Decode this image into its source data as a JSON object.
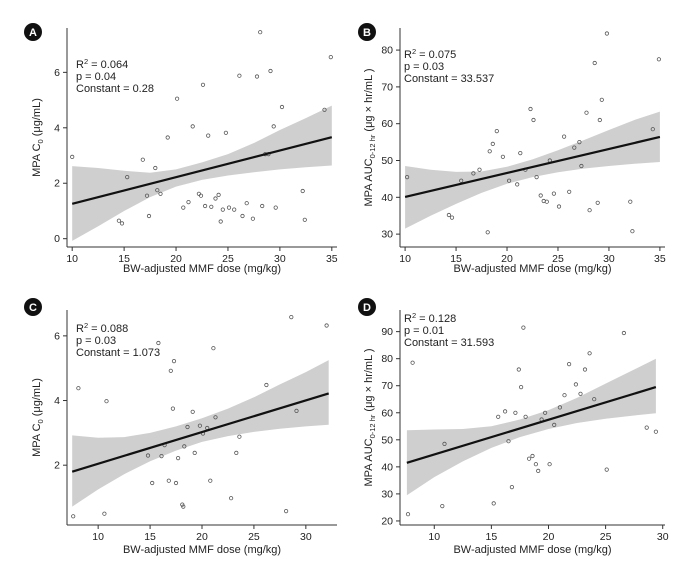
{
  "chart_data": [
    {
      "type": "scatter",
      "panel_label": "A",
      "xlabel": "BW-adjusted MMF dose (mg/kg)",
      "ylabel_main": "MPA C",
      "ylabel_sub": "0",
      "ylabel_rest": " (μg/mL)",
      "xlim": [
        9.5,
        35.5
      ],
      "ylim": [
        -0.3,
        7.6
      ],
      "xticks": [
        10,
        15,
        20,
        25,
        30,
        35
      ],
      "yticks": [
        0,
        2,
        4,
        6
      ],
      "stats": {
        "r2_label": "R",
        "r2_sup": "2",
        "r2_value": " = 0.064",
        "p": "p = 0.04",
        "constant": "Constant = 0.28"
      },
      "fit": {
        "x": [
          10,
          35
        ],
        "y": [
          1.26,
          3.66
        ]
      },
      "ci": {
        "x": [
          10,
          12.5,
          15,
          17.5,
          20,
          22.5,
          25,
          27.5,
          30,
          32.5,
          35
        ],
        "lower": [
          -0.08,
          0.45,
          1.0,
          1.5,
          1.88,
          2.12,
          2.28,
          2.4,
          2.5,
          2.58,
          2.64
        ],
        "upper": [
          2.62,
          2.55,
          2.45,
          2.38,
          2.5,
          2.75,
          3.05,
          3.45,
          3.92,
          4.35,
          4.8
        ]
      },
      "points": [
        {
          "x": 10,
          "y": 2.95
        },
        {
          "x": 14.5,
          "y": 0.65
        },
        {
          "x": 14.8,
          "y": 0.55
        },
        {
          "x": 15.3,
          "y": 2.22
        },
        {
          "x": 16.8,
          "y": 2.85
        },
        {
          "x": 17.2,
          "y": 1.55
        },
        {
          "x": 17.4,
          "y": 0.82
        },
        {
          "x": 18,
          "y": 2.55
        },
        {
          "x": 18.2,
          "y": 1.75
        },
        {
          "x": 18.5,
          "y": 1.62
        },
        {
          "x": 19.2,
          "y": 3.65
        },
        {
          "x": 20.1,
          "y": 5.05
        },
        {
          "x": 20.7,
          "y": 1.12
        },
        {
          "x": 21.2,
          "y": 1.32
        },
        {
          "x": 21.6,
          "y": 4.05
        },
        {
          "x": 22.2,
          "y": 1.62
        },
        {
          "x": 22.4,
          "y": 1.55
        },
        {
          "x": 22.6,
          "y": 5.55
        },
        {
          "x": 22.8,
          "y": 1.18
        },
        {
          "x": 23.1,
          "y": 3.72
        },
        {
          "x": 23.4,
          "y": 1.15
        },
        {
          "x": 23.8,
          "y": 1.45
        },
        {
          "x": 24.1,
          "y": 1.58
        },
        {
          "x": 24.3,
          "y": 0.62
        },
        {
          "x": 24.5,
          "y": 1.05
        },
        {
          "x": 24.8,
          "y": 3.82
        },
        {
          "x": 25.1,
          "y": 1.12
        },
        {
          "x": 25.6,
          "y": 1.05
        },
        {
          "x": 26.1,
          "y": 5.88
        },
        {
          "x": 26.4,
          "y": 0.82
        },
        {
          "x": 26.8,
          "y": 1.28
        },
        {
          "x": 27.4,
          "y": 0.72
        },
        {
          "x": 27.8,
          "y": 5.85
        },
        {
          "x": 28.1,
          "y": 7.45
        },
        {
          "x": 28.3,
          "y": 1.18
        },
        {
          "x": 28.6,
          "y": 3.05
        },
        {
          "x": 28.9,
          "y": 3.05
        },
        {
          "x": 29.1,
          "y": 6.05
        },
        {
          "x": 29.4,
          "y": 4.05
        },
        {
          "x": 29.6,
          "y": 1.12
        },
        {
          "x": 30.2,
          "y": 4.75
        },
        {
          "x": 32.2,
          "y": 1.72
        },
        {
          "x": 32.4,
          "y": 0.68
        },
        {
          "x": 34.3,
          "y": 4.65
        },
        {
          "x": 34.9,
          "y": 6.55
        }
      ]
    },
    {
      "type": "scatter",
      "panel_label": "B",
      "xlabel": "BW-adjusted MMF dose (mg/kg)",
      "ylabel_main": "MPA AUC",
      "ylabel_sub": "0-12 hr",
      "ylabel_rest": " (μg × hr/mL )",
      "xlim": [
        9.5,
        35.5
      ],
      "ylim": [
        26.5,
        86
      ],
      "xticks": [
        10,
        15,
        20,
        25,
        30,
        35
      ],
      "yticks": [
        30,
        40,
        50,
        60,
        70,
        80
      ],
      "stats": {
        "r2_label": "R",
        "r2_sup": "2",
        "r2_value": " = 0.075",
        "p": "p = 0.03",
        "constant": "Constant = 33.537"
      },
      "fit": {
        "x": [
          10,
          35
        ],
        "y": [
          40.1,
          56.4
        ]
      },
      "ci": {
        "x": [
          10,
          12.5,
          15,
          17.5,
          20,
          22.5,
          25,
          27.5,
          30,
          32.5,
          35
        ],
        "lower": [
          31.5,
          35.0,
          38.2,
          41.2,
          43.7,
          45.5,
          46.8,
          47.8,
          48.5,
          49.1,
          49.6
        ],
        "upper": [
          48.5,
          47.5,
          46.9,
          47.0,
          48.3,
          50.3,
          52.8,
          55.5,
          58.3,
          61.0,
          63.3
        ]
      },
      "points": [
        {
          "x": 10.2,
          "y": 45.5
        },
        {
          "x": 14.3,
          "y": 35.2
        },
        {
          "x": 14.6,
          "y": 34.5
        },
        {
          "x": 15.5,
          "y": 44.5
        },
        {
          "x": 16.7,
          "y": 46.5
        },
        {
          "x": 17.3,
          "y": 47.5
        },
        {
          "x": 18.1,
          "y": 30.5
        },
        {
          "x": 18.3,
          "y": 52.5
        },
        {
          "x": 18.6,
          "y": 54.5
        },
        {
          "x": 19.0,
          "y": 58.0
        },
        {
          "x": 19.6,
          "y": 51.0
        },
        {
          "x": 20.2,
          "y": 44.5
        },
        {
          "x": 21.0,
          "y": 43.5
        },
        {
          "x": 21.3,
          "y": 52.0
        },
        {
          "x": 21.8,
          "y": 47.5
        },
        {
          "x": 22.3,
          "y": 64.0
        },
        {
          "x": 22.6,
          "y": 61.0
        },
        {
          "x": 22.9,
          "y": 45.5
        },
        {
          "x": 23.3,
          "y": 40.5
        },
        {
          "x": 23.6,
          "y": 39.0
        },
        {
          "x": 23.9,
          "y": 38.8
        },
        {
          "x": 24.2,
          "y": 50.0
        },
        {
          "x": 24.6,
          "y": 41.0
        },
        {
          "x": 25.1,
          "y": 37.5
        },
        {
          "x": 25.6,
          "y": 56.5
        },
        {
          "x": 26.1,
          "y": 41.5
        },
        {
          "x": 26.6,
          "y": 53.5
        },
        {
          "x": 27.1,
          "y": 55.0
        },
        {
          "x": 27.3,
          "y": 48.5
        },
        {
          "x": 27.8,
          "y": 63.0
        },
        {
          "x": 28.1,
          "y": 36.5
        },
        {
          "x": 28.6,
          "y": 76.5
        },
        {
          "x": 28.9,
          "y": 38.5
        },
        {
          "x": 29.1,
          "y": 61.0
        },
        {
          "x": 29.3,
          "y": 66.5
        },
        {
          "x": 29.8,
          "y": 84.5
        },
        {
          "x": 32.1,
          "y": 38.8
        },
        {
          "x": 32.3,
          "y": 30.8
        },
        {
          "x": 34.3,
          "y": 58.5
        },
        {
          "x": 34.9,
          "y": 77.5
        }
      ]
    },
    {
      "type": "scatter",
      "panel_label": "C",
      "xlabel": "BW-adjusted MMF dose (mg/kg)",
      "ylabel_main": "MPA C",
      "ylabel_sub": "0",
      "ylabel_rest": " (μg/mL)",
      "xlim": [
        7,
        33
      ],
      "ylim": [
        0.15,
        6.8
      ],
      "xticks": [
        10,
        15,
        20,
        25,
        30
      ],
      "yticks": [
        2,
        4,
        6
      ],
      "stats": {
        "r2_label": "R",
        "r2_sup": "2",
        "r2_value": " = 0.088",
        "p": "p = 0.03",
        "constant": "Constant = 1.073"
      },
      "fit": {
        "x": [
          7.5,
          32.2
        ],
        "y": [
          1.8,
          4.22
        ]
      },
      "ci": {
        "x": [
          7.5,
          10,
          12.5,
          15,
          17.5,
          20,
          22.5,
          25,
          27.5,
          30,
          32.2
        ],
        "lower": [
          0.72,
          1.25,
          1.72,
          2.12,
          2.45,
          2.72,
          2.9,
          3.03,
          3.13,
          3.2,
          3.25
        ],
        "upper": [
          2.92,
          2.85,
          2.87,
          3.0,
          3.2,
          3.45,
          3.75,
          4.1,
          4.5,
          4.88,
          5.25
        ]
      },
      "points": [
        {
          "x": 7.6,
          "y": 0.42
        },
        {
          "x": 8.1,
          "y": 4.38
        },
        {
          "x": 10.6,
          "y": 0.5
        },
        {
          "x": 10.8,
          "y": 3.98
        },
        {
          "x": 14.8,
          "y": 2.3
        },
        {
          "x": 15.2,
          "y": 1.45
        },
        {
          "x": 15.8,
          "y": 5.78
        },
        {
          "x": 16.1,
          "y": 2.28
        },
        {
          "x": 16.4,
          "y": 2.62
        },
        {
          "x": 16.8,
          "y": 1.52
        },
        {
          "x": 17.0,
          "y": 4.92
        },
        {
          "x": 17.2,
          "y": 3.75
        },
        {
          "x": 17.3,
          "y": 5.22
        },
        {
          "x": 17.5,
          "y": 1.45
        },
        {
          "x": 17.7,
          "y": 2.22
        },
        {
          "x": 18.1,
          "y": 0.78
        },
        {
          "x": 18.2,
          "y": 0.72
        },
        {
          "x": 18.3,
          "y": 2.58
        },
        {
          "x": 18.6,
          "y": 3.18
        },
        {
          "x": 19.1,
          "y": 3.65
        },
        {
          "x": 19.3,
          "y": 2.38
        },
        {
          "x": 19.8,
          "y": 3.22
        },
        {
          "x": 20.1,
          "y": 2.98
        },
        {
          "x": 20.5,
          "y": 3.15
        },
        {
          "x": 20.8,
          "y": 1.52
        },
        {
          "x": 21.1,
          "y": 5.62
        },
        {
          "x": 21.3,
          "y": 3.48
        },
        {
          "x": 22.8,
          "y": 0.98
        },
        {
          "x": 23.3,
          "y": 2.38
        },
        {
          "x": 23.6,
          "y": 2.88
        },
        {
          "x": 26.2,
          "y": 4.48
        },
        {
          "x": 28.1,
          "y": 0.58
        },
        {
          "x": 28.6,
          "y": 6.58
        },
        {
          "x": 29.1,
          "y": 3.68
        },
        {
          "x": 32.0,
          "y": 6.32
        }
      ]
    },
    {
      "type": "scatter",
      "panel_label": "D",
      "xlabel": "BW-adjusted MMF dose (mg/kg)",
      "ylabel_main": "MPA AUC",
      "ylabel_sub": "0-12 hr",
      "ylabel_rest": " (μg × hr/mL )",
      "xlim": [
        7,
        30.2
      ],
      "ylim": [
        18.5,
        98
      ],
      "xticks": [
        10,
        15,
        20,
        25,
        30
      ],
      "yticks": [
        20,
        30,
        40,
        50,
        60,
        70,
        80,
        90
      ],
      "stats": {
        "r2_label": "R",
        "r2_sup": "2",
        "r2_value": " = 0.128",
        "p": "p = 0.01",
        "constant": "Constant = 31.593"
      },
      "fit": {
        "x": [
          7.6,
          29.4
        ],
        "y": [
          41.5,
          69.5
        ]
      },
      "ci": {
        "x": [
          7.6,
          10,
          12.5,
          15,
          17.5,
          20,
          22.5,
          25,
          27.5,
          29.4
        ],
        "lower": [
          29.5,
          36.2,
          42.0,
          47.0,
          51.0,
          54.0,
          56.2,
          57.8,
          59.0,
          59.8
        ],
        "upper": [
          53.5,
          53.8,
          54.0,
          55.0,
          57.5,
          61.0,
          65.5,
          70.8,
          76.0,
          80.0
        ]
      },
      "points": [
        {
          "x": 7.7,
          "y": 22.5
        },
        {
          "x": 8.1,
          "y": 78.5
        },
        {
          "x": 10.7,
          "y": 25.5
        },
        {
          "x": 10.9,
          "y": 48.5
        },
        {
          "x": 15.2,
          "y": 26.5
        },
        {
          "x": 15.6,
          "y": 58.5
        },
        {
          "x": 16.2,
          "y": 60.5
        },
        {
          "x": 16.5,
          "y": 49.5
        },
        {
          "x": 16.8,
          "y": 32.5
        },
        {
          "x": 17.1,
          "y": 60.0
        },
        {
          "x": 17.4,
          "y": 76.0
        },
        {
          "x": 17.6,
          "y": 69.5
        },
        {
          "x": 17.8,
          "y": 91.5
        },
        {
          "x": 18.0,
          "y": 58.5
        },
        {
          "x": 18.3,
          "y": 43.0
        },
        {
          "x": 18.6,
          "y": 44.0
        },
        {
          "x": 18.9,
          "y": 41.0
        },
        {
          "x": 19.1,
          "y": 38.5
        },
        {
          "x": 19.4,
          "y": 57.5
        },
        {
          "x": 19.7,
          "y": 60.0
        },
        {
          "x": 20.1,
          "y": 41.0
        },
        {
          "x": 20.5,
          "y": 55.5
        },
        {
          "x": 21.0,
          "y": 62.0
        },
        {
          "x": 21.4,
          "y": 66.5
        },
        {
          "x": 21.8,
          "y": 78.0
        },
        {
          "x": 22.4,
          "y": 70.5
        },
        {
          "x": 22.8,
          "y": 67.0
        },
        {
          "x": 23.2,
          "y": 76.0
        },
        {
          "x": 23.6,
          "y": 82.0
        },
        {
          "x": 24.0,
          "y": 65.0
        },
        {
          "x": 25.1,
          "y": 39.0
        },
        {
          "x": 26.6,
          "y": 89.5
        },
        {
          "x": 28.6,
          "y": 54.5
        },
        {
          "x": 29.4,
          "y": 53.0
        }
      ]
    }
  ]
}
